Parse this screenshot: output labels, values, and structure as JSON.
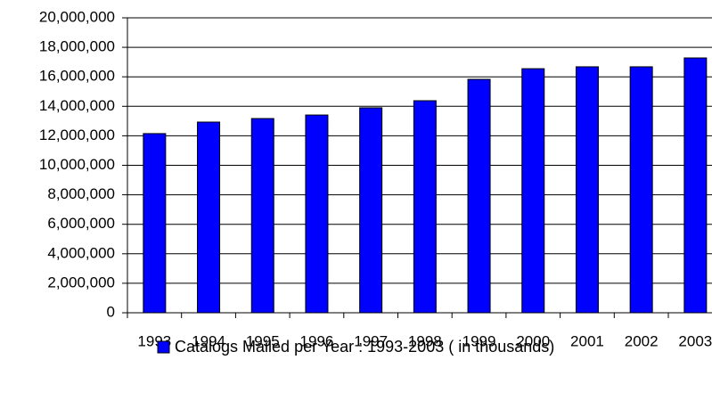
{
  "chart_data": {
    "type": "bar",
    "categories": [
      "1993",
      "1994",
      "1995",
      "1996",
      "1997",
      "1998",
      "1999",
      "2000",
      "2001",
      "2002",
      "2003"
    ],
    "series": [
      {
        "name": "Catalogs Mailed per Year : 1993-2003 ( in thousands)",
        "color": "#0000ff",
        "values": [
          12150000,
          12930000,
          13170000,
          13410000,
          13900000,
          14380000,
          15830000,
          16550000,
          16680000,
          16680000,
          17280000
        ]
      }
    ],
    "ylim": [
      0,
      20000000
    ],
    "yticks": [
      0,
      {
        "value": 2000000,
        "label": "2,000,000"
      },
      {
        "value": 4000000,
        "label": "4,000,000"
      },
      {
        "value": 6000000,
        "label": "6,000,000"
      },
      {
        "value": 8000000,
        "label": "8,000,000"
      },
      {
        "value": 10000000,
        "label": "10,000,000"
      },
      {
        "value": 12000000,
        "label": "12,000,000"
      },
      {
        "value": 14000000,
        "label": "14,000,000"
      },
      {
        "value": 16000000,
        "label": "16,000,000"
      },
      {
        "value": 18000000,
        "label": "18,000,000"
      },
      {
        "value": 20000000,
        "label": "20,000,000"
      }
    ],
    "grid": true,
    "legend": "bottom"
  }
}
